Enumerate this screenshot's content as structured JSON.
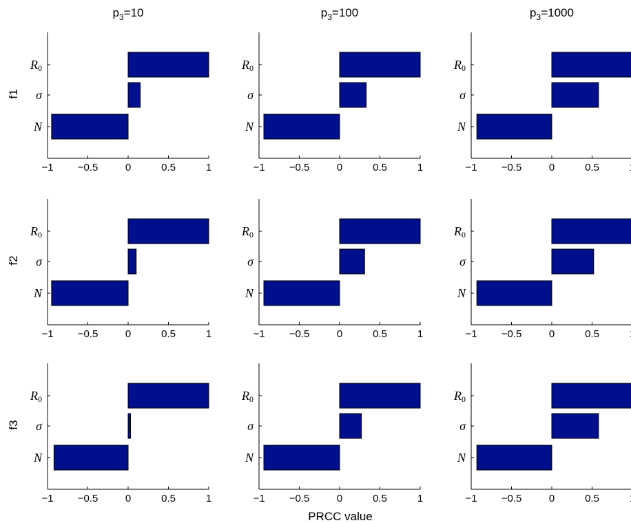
{
  "figure": {
    "xlabel": "PRCC value",
    "bar_color": "#000f8c",
    "axis_color": "#000000"
  },
  "chart_data": {
    "type": "bar",
    "orientation": "horizontal",
    "xlim": [
      -1,
      1
    ],
    "xticks": [
      -1,
      -0.5,
      0,
      0.5,
      1
    ],
    "xtick_labels": [
      "−1",
      "−0.5",
      "0",
      "0.5",
      "1"
    ],
    "categories": [
      {
        "symbol": "R",
        "sub": "0"
      },
      {
        "symbol": "σ",
        "sub": ""
      },
      {
        "symbol": "N",
        "sub": ""
      }
    ],
    "columns": [
      {
        "base": "p",
        "sub": "3",
        "suffix": "=10"
      },
      {
        "base": "p",
        "sub": "3",
        "suffix": "=100"
      },
      {
        "base": "p",
        "sub": "3",
        "suffix": "=1000"
      }
    ],
    "rows": [
      "f1",
      "f2",
      "f3"
    ],
    "panels": [
      [
        {
          "values": [
            1.0,
            0.15,
            -0.95
          ]
        },
        {
          "values": [
            1.0,
            0.33,
            -0.94
          ]
        },
        {
          "values": [
            1.0,
            0.58,
            -0.93
          ]
        }
      ],
      [
        {
          "values": [
            1.0,
            0.1,
            -0.95
          ]
        },
        {
          "values": [
            1.0,
            0.31,
            -0.94
          ]
        },
        {
          "values": [
            1.0,
            0.52,
            -0.93
          ]
        }
      ],
      [
        {
          "values": [
            1.0,
            0.03,
            -0.92
          ]
        },
        {
          "values": [
            1.0,
            0.27,
            -0.94
          ]
        },
        {
          "values": [
            1.0,
            0.58,
            -0.93
          ]
        }
      ]
    ]
  }
}
